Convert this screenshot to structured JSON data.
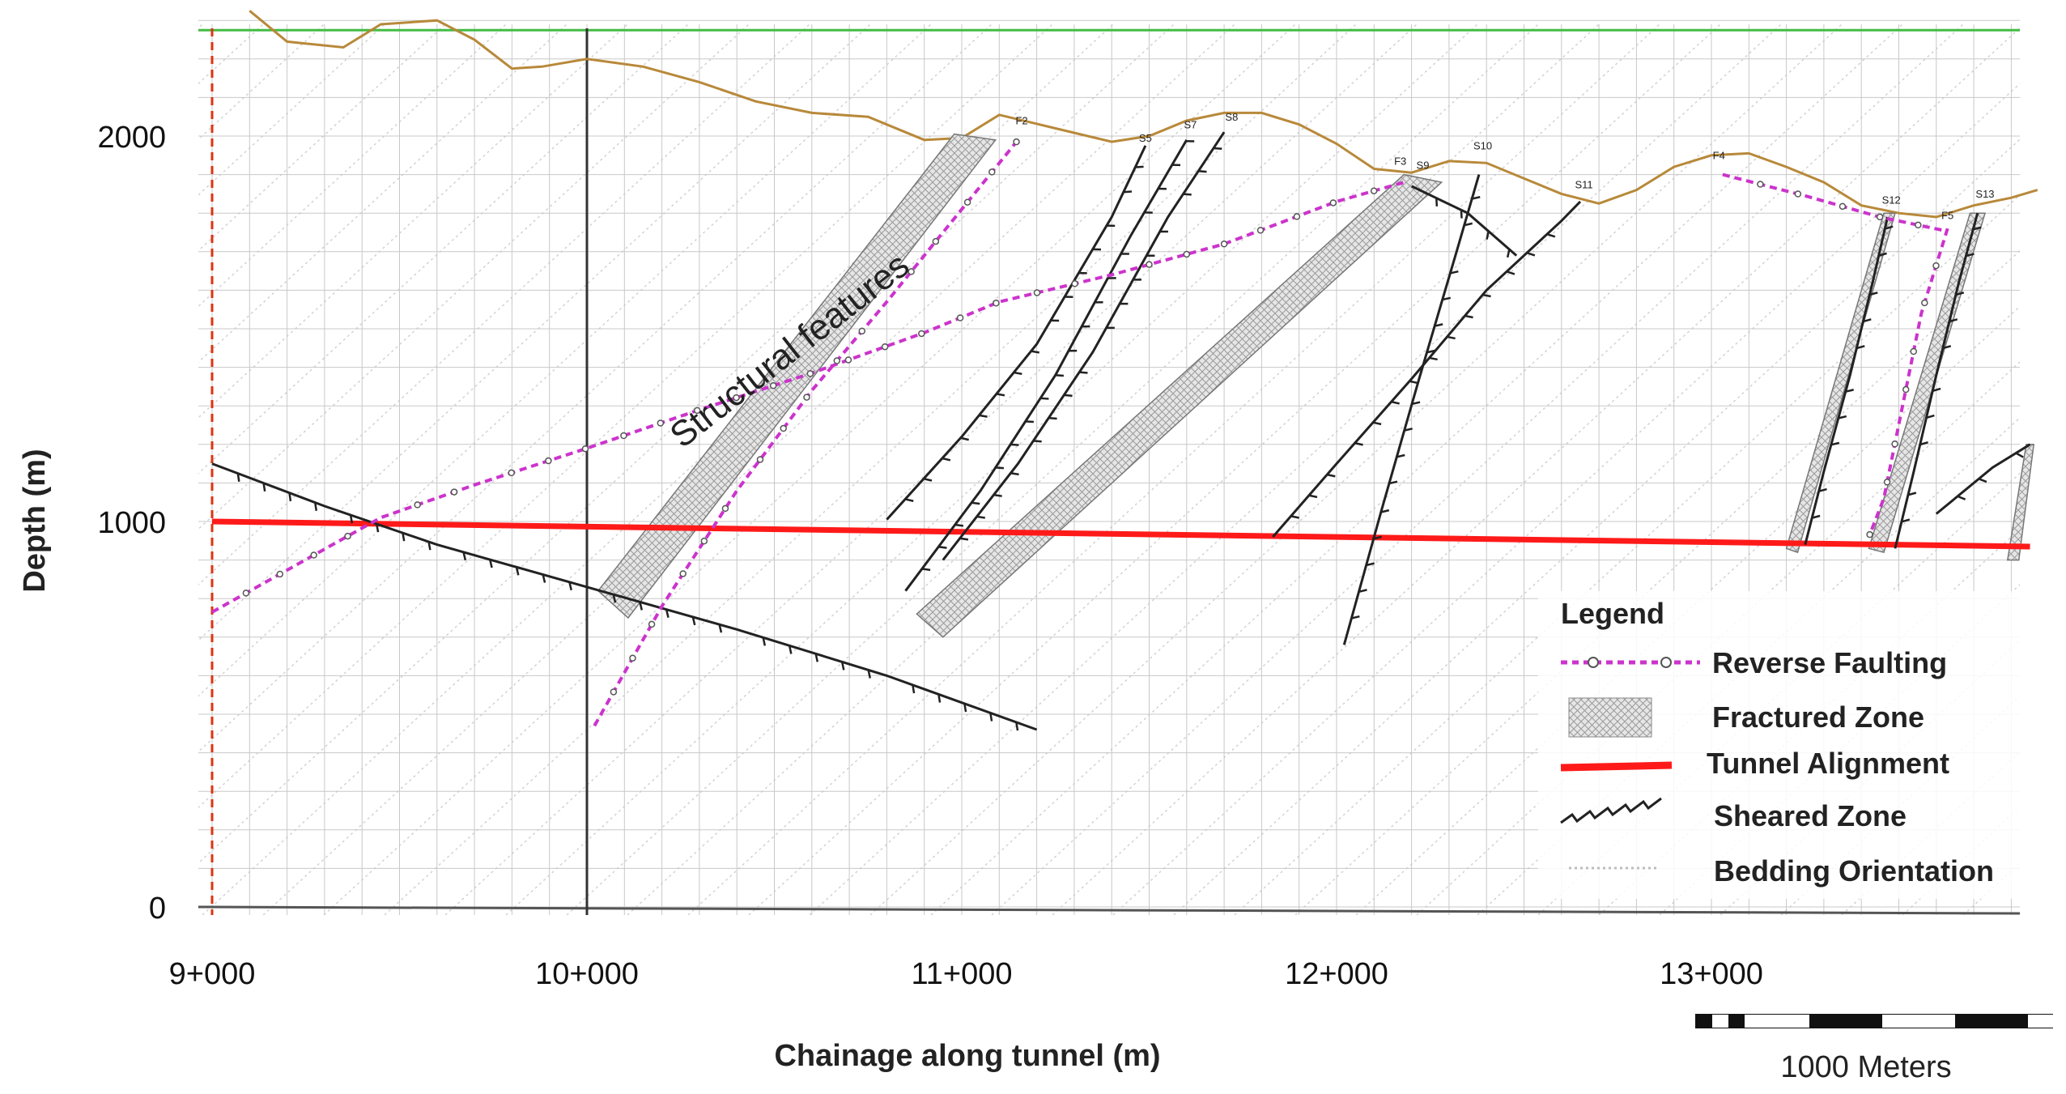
{
  "chart_data": {
    "type": "cross-section",
    "title": "",
    "xlabel": "Chainage along tunnel (m)",
    "ylabel": "Depth (m)",
    "xlim": [
      9000,
      13870
    ],
    "ylim": [
      0,
      2325
    ],
    "x_ticks": [
      {
        "value": 9000,
        "label": "9+000"
      },
      {
        "value": 10000,
        "label": "10+000"
      },
      {
        "value": 11000,
        "label": "11+000"
      },
      {
        "value": 12000,
        "label": "12+000"
      },
      {
        "value": 13000,
        "label": "13+000"
      }
    ],
    "y_ticks": [
      {
        "value": 0,
        "label": "0"
      },
      {
        "value": 1000,
        "label": "1000"
      },
      {
        "value": 2000,
        "label": "2000"
      }
    ],
    "ground_surface": {
      "x": [
        9100,
        9200,
        9350,
        9450,
        9600,
        9700,
        9800,
        9880,
        10000,
        10150,
        10300,
        10450,
        10600,
        10750,
        10900,
        11000,
        11100,
        11250,
        11400,
        11500,
        11600,
        11700,
        11800,
        11900,
        12000,
        12100,
        12200,
        12300,
        12400,
        12500,
        12600,
        12700,
        12800,
        12900,
        13000,
        13100,
        13200,
        13300,
        13400,
        13500,
        13600,
        13700,
        13800,
        13870
      ],
      "y": [
        2325,
        2245,
        2230,
        2290,
        2300,
        2250,
        2175,
        2180,
        2200,
        2180,
        2140,
        2090,
        2060,
        2050,
        1990,
        1995,
        2055,
        2020,
        1985,
        2000,
        2040,
        2060,
        2060,
        2030,
        1980,
        1915,
        1905,
        1935,
        1930,
        1890,
        1850,
        1825,
        1860,
        1920,
        1950,
        1955,
        1920,
        1880,
        1820,
        1800,
        1790,
        1820,
        1840,
        1860
      ]
    },
    "tunnel_alignment": {
      "x": [
        9000,
        13850
      ],
      "y": [
        1000,
        935
      ]
    },
    "reference_lines": {
      "top_line_depth": 2325,
      "vertical_chainage": 10000,
      "dashed_chainage": 9000
    },
    "reverse_faults": [
      {
        "id": "F1",
        "x": [
          9000,
          9450,
          9700,
          10000,
          10300,
          10600,
          10900,
          11100,
          11400,
          11700,
          12000,
          12180
        ],
        "y": [
          765,
          1010,
          1095,
          1190,
          1290,
          1385,
          1490,
          1570,
          1640,
          1720,
          1830,
          1880
        ]
      },
      {
        "id": "F2",
        "x": [
          10020,
          10200,
          10400,
          10600,
          10800,
          10950,
          11150
        ],
        "y": [
          470,
          780,
          1080,
          1340,
          1570,
          1750,
          1990
        ]
      },
      {
        "id": "F4",
        "x": [
          13030,
          13250,
          13450,
          13620
        ],
        "y": [
          1900,
          1845,
          1790,
          1755
        ]
      },
      {
        "id": "F5",
        "x": [
          13630,
          13560,
          13510,
          13460,
          13420
        ],
        "y": [
          1760,
          1540,
          1300,
          1060,
          960
        ]
      }
    ],
    "fractured_zones": [
      {
        "x": [
          10030,
          10110,
          11090,
          10980
        ],
        "y": [
          820,
          750,
          1990,
          2005
        ]
      },
      {
        "x": [
          10880,
          10950,
          12280,
          12180
        ],
        "y": [
          760,
          700,
          1880,
          1900
        ]
      },
      {
        "x": [
          13200,
          13230,
          13490,
          13460
        ],
        "y": [
          930,
          920,
          1800,
          1800
        ]
      },
      {
        "x": [
          13420,
          13460,
          13730,
          13690
        ],
        "y": [
          930,
          920,
          1800,
          1800
        ]
      },
      {
        "x": [
          13790,
          13820,
          13860,
          13840
        ],
        "y": [
          900,
          900,
          1200,
          1200
        ]
      }
    ],
    "sheared_zones": [
      {
        "id": "S1",
        "x": [
          9000,
          9300,
          9600,
          10000,
          10400,
          10800,
          11200
        ],
        "y": [
          1150,
          1040,
          940,
          830,
          720,
          600,
          460
        ]
      },
      {
        "id": "S5",
        "x": [
          10800,
          11000,
          11200,
          11400,
          11490
        ],
        "y": [
          1005,
          1220,
          1460,
          1790,
          1975
        ]
      },
      {
        "id": "S7",
        "x": [
          10850,
          11050,
          11250,
          11450,
          11600
        ],
        "y": [
          820,
          1080,
          1380,
          1740,
          1990
        ]
      },
      {
        "id": "S8",
        "x": [
          10950,
          11150,
          11350,
          11550,
          11700
        ],
        "y": [
          900,
          1150,
          1440,
          1790,
          2010
        ]
      },
      {
        "id": "S9",
        "x": [
          12200,
          12350,
          12480
        ],
        "y": [
          1870,
          1800,
          1690
        ]
      },
      {
        "id": "S10",
        "x": [
          12020,
          12120,
          12220,
          12320,
          12380
        ],
        "y": [
          680,
          1030,
          1370,
          1700,
          1900
        ]
      },
      {
        "id": "S11",
        "x": [
          11830,
          12000,
          12200,
          12400,
          12600,
          12650
        ],
        "y": [
          960,
          1150,
          1370,
          1600,
          1780,
          1830
        ]
      },
      {
        "id": "S12",
        "x": [
          13250,
          13300,
          13370,
          13430,
          13470
        ],
        "y": [
          940,
          1130,
          1380,
          1620,
          1790
        ]
      },
      {
        "id": "S13",
        "x": [
          13490,
          13540,
          13600,
          13660,
          13710
        ],
        "y": [
          930,
          1130,
          1380,
          1620,
          1800
        ]
      },
      {
        "id": "S14",
        "x": [
          13600,
          13750,
          13850
        ],
        "y": [
          1020,
          1140,
          1200
        ]
      }
    ],
    "feature_labels": [
      {
        "text": "F2",
        "x": 11160,
        "y": 2030
      },
      {
        "text": "S5",
        "x": 11490,
        "y": 1985
      },
      {
        "text": "S7",
        "x": 11610,
        "y": 2020
      },
      {
        "text": "S8",
        "x": 11720,
        "y": 2040
      },
      {
        "text": "F3",
        "x": 12170,
        "y": 1925
      },
      {
        "text": "S9",
        "x": 12230,
        "y": 1915
      },
      {
        "text": "S10",
        "x": 12390,
        "y": 1965
      },
      {
        "text": "S11",
        "x": 12660,
        "y": 1865
      },
      {
        "text": "F4",
        "x": 13020,
        "y": 1940
      },
      {
        "text": "S12",
        "x": 13480,
        "y": 1825
      },
      {
        "text": "F5",
        "x": 13630,
        "y": 1785
      },
      {
        "text": "S13",
        "x": 13730,
        "y": 1840
      }
    ],
    "annotation": {
      "text": "Structural features",
      "x": 10560,
      "y": 1420,
      "angle": -38
    },
    "legend": {
      "title": "Legend",
      "position": "bottom-right",
      "entries": [
        {
          "label": "Reverse Faulting",
          "symbol": "reverse-fault"
        },
        {
          "label": "Fractured Zone",
          "symbol": "fractured-zone"
        },
        {
          "label": "Tunnel Alignment",
          "symbol": "tunnel"
        },
        {
          "label": "Sheared Zone",
          "symbol": "sheared-zone"
        },
        {
          "label": "Bedding Orientation",
          "symbol": "bedding"
        }
      ]
    },
    "scale_bar": {
      "label": "1000 Meters",
      "segments": 7
    }
  },
  "colors": {
    "ground": "#b8893a",
    "tunnel": "#ff1a1a",
    "fault": "#cc33cc",
    "shear": "#222222",
    "top_line": "#44bb44",
    "dashed_ref": "#dd3311",
    "grid": "#c8c8c8",
    "bedding": "#d2d2d2",
    "axis_text": "#111111"
  }
}
